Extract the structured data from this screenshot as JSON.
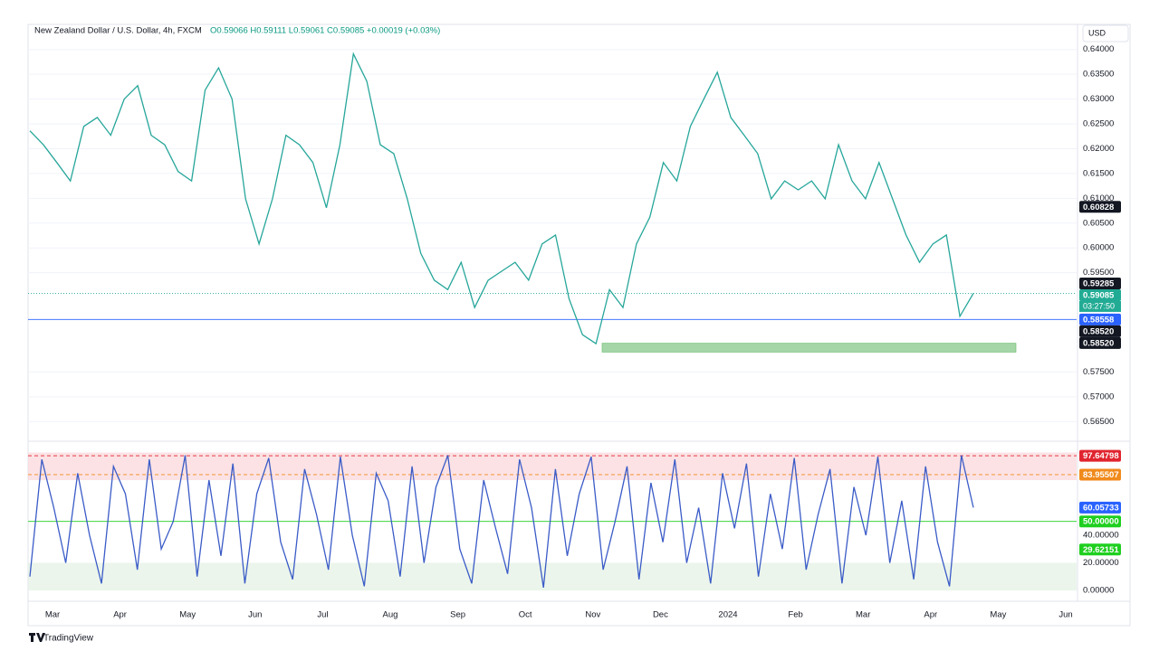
{
  "header": {
    "symbol": "New Zealand Dollar / U.S. Dollar, 4h, FXCM",
    "ohlc": "O0.59066 H0.59111 L0.59061 C0.59085 +0.00019 (+0.03%)",
    "currency": "USD",
    "countdown": "03:27:50",
    "brand": "TradingView"
  },
  "chart_data": [
    {
      "type": "line",
      "color": "#26a69a",
      "grid": true,
      "values": [
        0.6236,
        0.6208,
        0.6172,
        0.6135,
        0.6245,
        0.6263,
        0.6227,
        0.63,
        0.6327,
        0.6227,
        0.6208,
        0.6154,
        0.6135,
        0.6318,
        0.6363,
        0.63,
        0.6099,
        0.6008,
        0.6099,
        0.6227,
        0.6208,
        0.6172,
        0.6081,
        0.6208,
        0.6391,
        0.6336,
        0.6208,
        0.619,
        0.6099,
        0.5989,
        0.5935,
        0.5916,
        0.5971,
        0.588,
        0.5935,
        0.5953,
        0.5971,
        0.5935,
        0.6008,
        0.6026,
        0.5898,
        0.5825,
        0.5807,
        0.5916,
        0.588,
        0.6008,
        0.6062,
        0.6172,
        0.6135,
        0.6245,
        0.63,
        0.6354,
        0.6263,
        0.6227,
        0.619,
        0.6099,
        0.6135,
        0.6117,
        0.6135,
        0.6099,
        0.6208,
        0.6135,
        0.6099,
        0.6172,
        0.6099,
        0.6026,
        0.5971,
        0.6008,
        0.6026,
        0.5862,
        0.59085
      ],
      "ylim": [
        0.5625,
        0.6445
      ],
      "yticks": [
        {
          "value": 0.565,
          "label": "0.56500"
        },
        {
          "value": 0.57,
          "label": "0.57000"
        },
        {
          "value": 0.575,
          "label": "0.57500"
        },
        {
          "value": 0.595,
          "label": "0.59500"
        },
        {
          "value": 0.6,
          "label": "0.60000"
        },
        {
          "value": 0.605,
          "label": "0.60500"
        },
        {
          "value": 0.61,
          "label": "0.61000"
        },
        {
          "value": 0.615,
          "label": "0.61500"
        },
        {
          "value": 0.62,
          "label": "0.62000"
        },
        {
          "value": 0.625,
          "label": "0.62500"
        },
        {
          "value": 0.63,
          "label": "0.63000"
        },
        {
          "value": 0.635,
          "label": "0.63500"
        },
        {
          "value": 0.64,
          "label": "0.64000"
        }
      ],
      "zone": {
        "from": 0.579,
        "to": 0.5808,
        "color": "#a5d6a7"
      },
      "price_labels": [
        {
          "value": 0.60828,
          "label": "0.60828",
          "color": "#131722"
        },
        {
          "value": 0.59285,
          "label": "0.59285",
          "color": "#131722"
        },
        {
          "value": 0.59085,
          "label": "0.59085",
          "color": "#22ab94",
          "line": "dotted"
        },
        {
          "value": 0.58558,
          "label": "0.58558",
          "color": "#2962ff",
          "line": "solid"
        },
        {
          "value": 0.5852,
          "label": "0.58520",
          "color": "#131722"
        },
        {
          "value": 0.5852,
          "label": "0.58520",
          "color": "#131722"
        }
      ]
    },
    {
      "type": "line",
      "color": "#3a5bc7",
      "grid": false,
      "values": [
        10,
        95,
        60,
        20,
        85,
        40,
        5,
        90,
        70,
        15,
        95,
        30,
        50,
        98,
        10,
        80,
        25,
        92,
        5,
        70,
        96,
        35,
        8,
        88,
        55,
        15,
        97,
        40,
        3,
        85,
        65,
        10,
        90,
        20,
        75,
        98,
        30,
        5,
        80,
        45,
        12,
        95,
        60,
        2,
        88,
        25,
        70,
        97,
        15,
        50,
        90,
        8,
        78,
        35,
        95,
        20,
        60,
        5,
        85,
        45,
        92,
        10,
        70,
        30,
        96,
        15,
        55,
        88,
        5,
        75,
        40,
        97,
        20,
        65,
        8,
        90,
        35,
        3,
        98,
        60.05733
      ],
      "ylim": [
        -7.9,
        102.3
      ],
      "yticks": [
        {
          "value": 0,
          "label": "0.00000"
        },
        {
          "value": 20,
          "label": "20.00000"
        },
        {
          "value": 40,
          "label": "40.00000"
        }
      ],
      "bands": [
        {
          "from": 80,
          "to": 100,
          "color": "#fbd5d8"
        },
        {
          "from": 0,
          "to": 20,
          "color": "#e3f1e3"
        }
      ],
      "price_labels": [
        {
          "value": 97.64798,
          "label": "97.64798",
          "color": "#e0242f",
          "line": "dashed"
        },
        {
          "value": 83.95507,
          "label": "83.95507",
          "color": "#f08a1c",
          "line": "dashed"
        },
        {
          "value": 60.05733,
          "label": "60.05733",
          "color": "#2962ff"
        },
        {
          "value": 50,
          "label": "50.00000",
          "color": "#1fcf1f",
          "line": "solid"
        },
        {
          "value": 29.62151,
          "label": "29.62151",
          "color": "#1fcf1f"
        }
      ]
    }
  ],
  "x_axis_labels": [
    "Mar",
    "Apr",
    "May",
    "Jun",
    "Jul",
    "Aug",
    "Sep",
    "Oct",
    "Nov",
    "Dec",
    "2024",
    "Feb",
    "Mar",
    "Apr",
    "May",
    "Jun"
  ]
}
